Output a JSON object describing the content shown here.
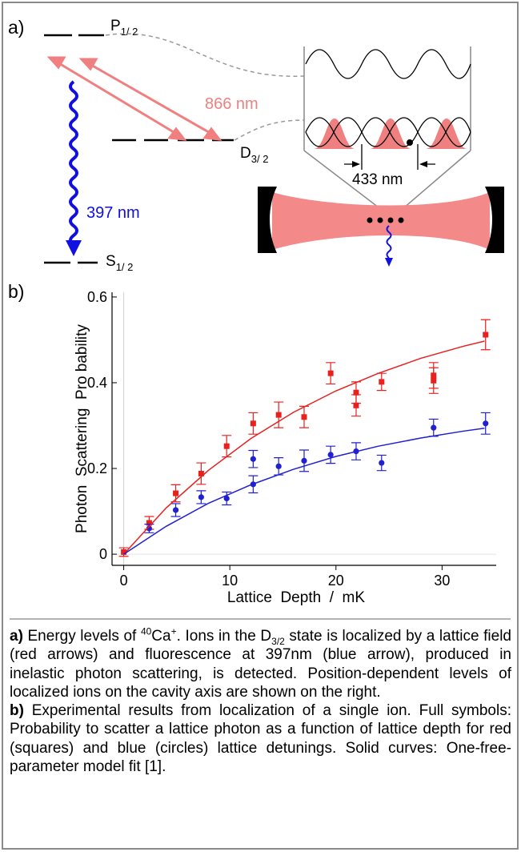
{
  "panel_a": {
    "label": "a)",
    "p_level": {
      "symbol": "P",
      "subscript": "1/ 2"
    },
    "d_level": {
      "symbol": "D",
      "subscript": "3/ 2"
    },
    "s_level": {
      "symbol": "S",
      "subscript": "1/ 2"
    },
    "red_wavelength": "866 nm",
    "blue_wavelength": "397 nm",
    "spacing": "433 nm"
  },
  "panel_b_label": "b)",
  "chart_data": {
    "type": "scatter",
    "xlabel": "Lattice  Depth  /  mK",
    "ylabel": "Photon  Scattering  Pro bability",
    "xlim": [
      -1.1,
      35.1
    ],
    "ylim": [
      -0.026,
      0.611
    ],
    "xticks": [
      0,
      10,
      20,
      30
    ],
    "yticks": [
      0,
      0.2,
      0.4,
      0.6
    ],
    "zero_lines": true,
    "series": [
      {
        "marker": "square",
        "color": "#e8201e",
        "x": [
          0,
          2.4,
          4.9,
          7.3,
          9.7,
          12.2,
          14.6,
          17.0,
          19.5,
          21.9,
          21.9,
          24.3,
          29.2,
          29.2,
          34.1
        ],
        "values": [
          0.005,
          0.073,
          0.142,
          0.188,
          0.252,
          0.305,
          0.325,
          0.32,
          0.422,
          0.377,
          0.347,
          0.402,
          0.417,
          0.405,
          0.512
        ],
        "errors": [
          0.01,
          0.015,
          0.02,
          0.025,
          0.025,
          0.025,
          0.03,
          0.025,
          0.025,
          0.025,
          0.025,
          0.02,
          0.03,
          0.03,
          0.035
        ]
      },
      {
        "marker": "circle",
        "color": "#2020d0",
        "x": [
          2.4,
          4.9,
          7.3,
          9.7,
          12.2,
          12.2,
          14.6,
          17.0,
          19.5,
          21.9,
          24.3,
          29.2,
          34.1
        ],
        "values": [
          0.06,
          0.103,
          0.133,
          0.13,
          0.222,
          0.163,
          0.205,
          0.218,
          0.232,
          0.24,
          0.213,
          0.295,
          0.305
        ],
        "errors": [
          0.01,
          0.015,
          0.015,
          0.015,
          0.02,
          0.02,
          0.02,
          0.025,
          0.02,
          0.02,
          0.018,
          0.02,
          0.025
        ]
      },
      {
        "marker": "line",
        "color": "#e8201e",
        "x": [
          0,
          4,
          8,
          12,
          16,
          20,
          24,
          28,
          32,
          34
        ],
        "values": [
          0,
          0.108,
          0.196,
          0.27,
          0.331,
          0.381,
          0.422,
          0.457,
          0.485,
          0.497
        ]
      },
      {
        "marker": "line",
        "color": "#2020d0",
        "x": [
          0,
          4,
          8,
          12,
          16,
          20,
          24,
          28,
          32,
          34
        ],
        "values": [
          0,
          0.065,
          0.119,
          0.162,
          0.198,
          0.228,
          0.252,
          0.271,
          0.287,
          0.294
        ]
      }
    ]
  },
  "caption": [
    {
      "label": "a)",
      "parts": [
        {
          "text": " Energy levels of "
        },
        {
          "text": "40",
          "style": "sup"
        },
        {
          "text": "Ca"
        },
        {
          "text": "+",
          "style": "sup"
        },
        {
          "text": ". Ions in the D"
        },
        {
          "text": "3/2",
          "style": "sub"
        },
        {
          "text": " state is localized by a lattice field (red arrows) and fluorescence at 397nm (blue arrow), produced in inelastic photon scattering, is detected. Position-dependent levels of localized ions on the cavity axis are shown on the right."
        }
      ]
    },
    {
      "label": "b)",
      "parts": [
        {
          "text": " Experimental results from localization of a single ion. Full symbols: Probability to scatter a lattice photon as a function of lattice depth for red (squares) and blue (circles) lattice detunings. Solid curves: One-free-parameter model fit [1]."
        }
      ]
    }
  ]
}
